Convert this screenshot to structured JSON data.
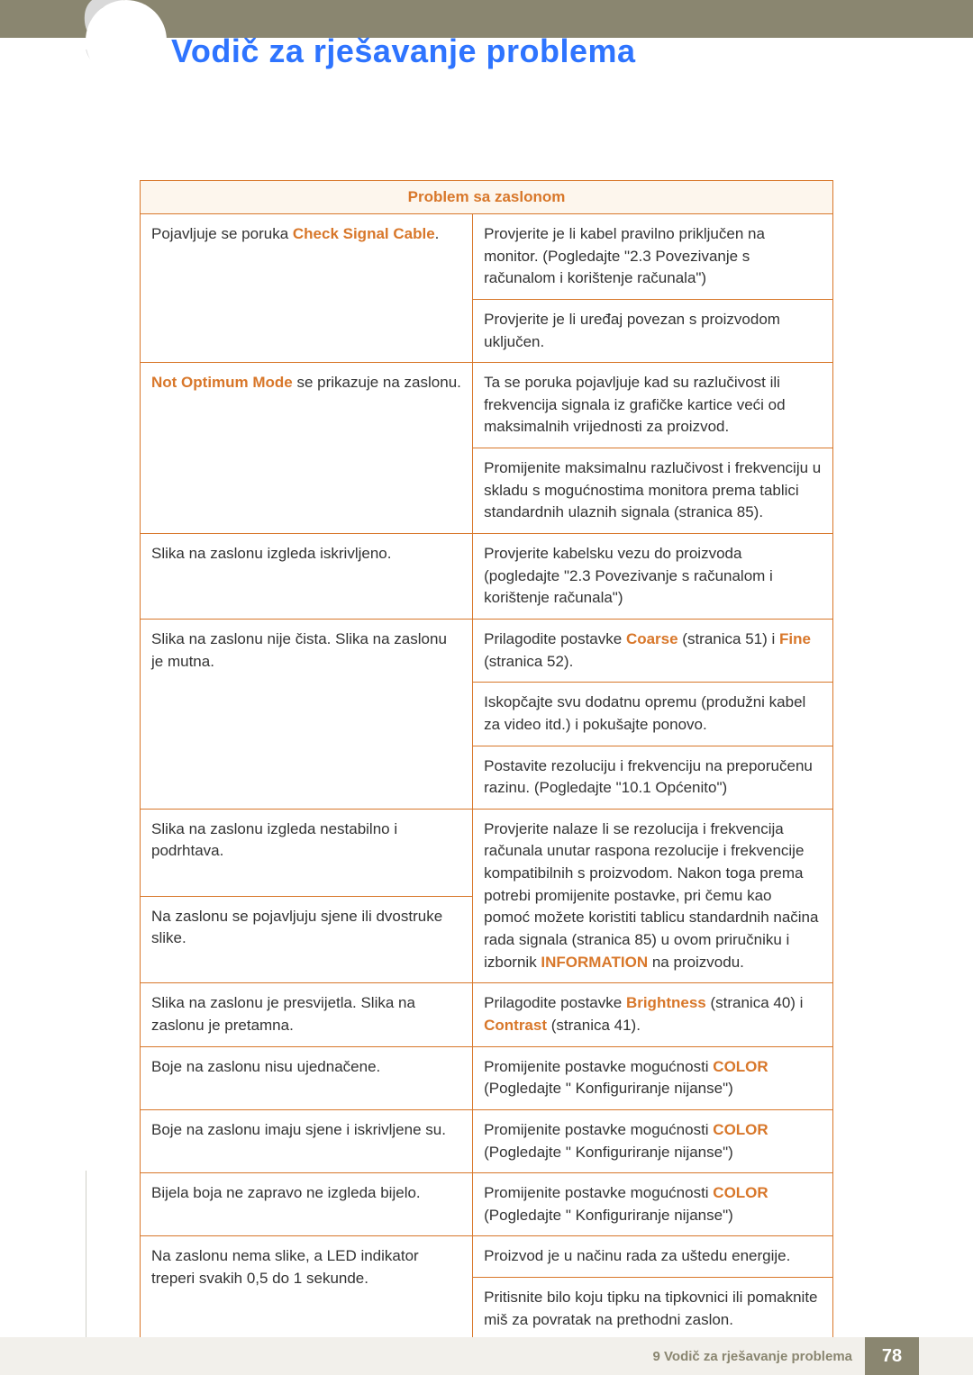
{
  "chapter_number": "9",
  "page_title": "Vodič za rješavanje problema",
  "table_header": "Problem sa zaslonom",
  "rows": [
    {
      "left": {
        "segments": [
          {
            "t": "Pojavljuje se poruka "
          },
          {
            "t": "Check Signal Cable",
            "hl": true
          },
          {
            "t": "."
          }
        ],
        "rowspan": 2
      },
      "right": {
        "segments": [
          {
            "t": "Provjerite je li kabel pravilno priključen na monitor. (Pogledajte \"2.3 Povezivanje s računalom i korištenje računala\")"
          }
        ]
      }
    },
    {
      "right": {
        "segments": [
          {
            "t": "Provjerite je li uređaj povezan s proizvodom uključen."
          }
        ]
      }
    },
    {
      "left": {
        "segments": [
          {
            "t": "Not Optimum Mode",
            "hl": true
          },
          {
            "t": " se prikazuje na zaslonu."
          }
        ],
        "rowspan": 2
      },
      "right": {
        "segments": [
          {
            "t": "Ta se poruka pojavljuje kad su razlučivost ili frekvencija signala iz grafičke kartice veći od maksimalnih vrijednosti za proizvod."
          }
        ]
      }
    },
    {
      "right": {
        "segments": [
          {
            "t": "Promijenite maksimalnu razlučivost i frekvenciju u skladu s mogućnostima monitora prema tablici standardnih ulaznih signala (stranica 85)."
          }
        ]
      }
    },
    {
      "left": {
        "segments": [
          {
            "t": "Slika na zaslonu izgleda iskrivljeno."
          }
        ]
      },
      "right": {
        "segments": [
          {
            "t": "Provjerite kabelsku vezu do proizvoda (pogledajte \"2.3 Povezivanje s računalom i korištenje računala\")"
          }
        ]
      }
    },
    {
      "left": {
        "segments": [
          {
            "t": "Slika na zaslonu nije čista. Slika na zaslonu je mutna."
          }
        ],
        "rowspan": 3
      },
      "right": {
        "segments": [
          {
            "t": "Prilagodite postavke "
          },
          {
            "t": "Coarse",
            "hl": true
          },
          {
            "t": " (stranica 51) i "
          },
          {
            "t": "Fine",
            "hl": true
          },
          {
            "t": " (stranica 52)."
          }
        ]
      }
    },
    {
      "right": {
        "segments": [
          {
            "t": "Iskopčajte svu dodatnu opremu (produžni kabel za video itd.) i pokušajte ponovo."
          }
        ]
      }
    },
    {
      "right": {
        "segments": [
          {
            "t": "Postavite rezoluciju i frekvenciju na preporučenu razinu. (Pogledajte \"10.1 Općenito\")"
          }
        ]
      }
    },
    {
      "left": {
        "segments": [
          {
            "t": "Slika na zaslonu izgleda nestabilno i podrhtava."
          }
        ]
      },
      "right": {
        "segments": [
          {
            "t": "Provjerite nalaze li se rezolucija i frekvencija računala unutar raspona rezolucije i frekvencije kompatibilnih s proizvodom. Nakon toga prema potrebi promijenite postavke, pri čemu kao pomoć možete koristiti tablicu standardnih načina rada signala (stranica 85) u ovom priručniku i izbornik "
          },
          {
            "t": "INFORMATION",
            "hl": true
          },
          {
            "t": " na proizvodu."
          }
        ],
        "rowspan": 2
      }
    },
    {
      "left": {
        "segments": [
          {
            "t": "Na zaslonu se pojavljuju sjene ili dvostruke slike."
          }
        ]
      }
    },
    {
      "left": {
        "segments": [
          {
            "t": "Slika na zaslonu je presvijetla. Slika na zaslonu je pretamna."
          }
        ]
      },
      "right": {
        "segments": [
          {
            "t": "Prilagodite postavke "
          },
          {
            "t": "Brightness",
            "hl": true
          },
          {
            "t": " (stranica 40) i "
          },
          {
            "t": "Contrast",
            "hl": true
          },
          {
            "t": " (stranica 41)."
          }
        ]
      }
    },
    {
      "left": {
        "segments": [
          {
            "t": "Boje na zaslonu nisu ujednačene."
          }
        ]
      },
      "right": {
        "segments": [
          {
            "t": "Promijenite postavke mogućnosti "
          },
          {
            "t": "COLOR",
            "hl": true
          },
          {
            "t": " (Pogledajte \" Konfiguriranje nijanse\")"
          }
        ]
      }
    },
    {
      "left": {
        "segments": [
          {
            "t": "Boje na zaslonu imaju sjene i iskrivljene su."
          }
        ]
      },
      "right": {
        "segments": [
          {
            "t": "Promijenite postavke mogućnosti "
          },
          {
            "t": "COLOR",
            "hl": true
          },
          {
            "t": " (Pogledajte \" Konfiguriranje nijanse\")"
          }
        ]
      }
    },
    {
      "left": {
        "segments": [
          {
            "t": "Bijela boja ne zapravo ne izgleda bijelo."
          }
        ]
      },
      "right": {
        "segments": [
          {
            "t": "Promijenite postavke mogućnosti "
          },
          {
            "t": "COLOR",
            "hl": true
          },
          {
            "t": " (Pogledajte \" Konfiguriranje nijanse\")"
          }
        ]
      }
    },
    {
      "left": {
        "segments": [
          {
            "t": "Na zaslonu nema slike, a LED indikator treperi svakih 0,5 do 1 sekunde."
          }
        ],
        "rowspan": 2
      },
      "right": {
        "segments": [
          {
            "t": "Proizvod je u načinu rada za uštedu energije."
          }
        ]
      }
    },
    {
      "right": {
        "segments": [
          {
            "t": "Pritisnite bilo koju tipku na tipkovnici ili pomaknite miš za povratak na prethodni zaslon."
          }
        ]
      }
    }
  ],
  "footer_text": "9 Vodič za rješavanje problema",
  "page_number": "78"
}
